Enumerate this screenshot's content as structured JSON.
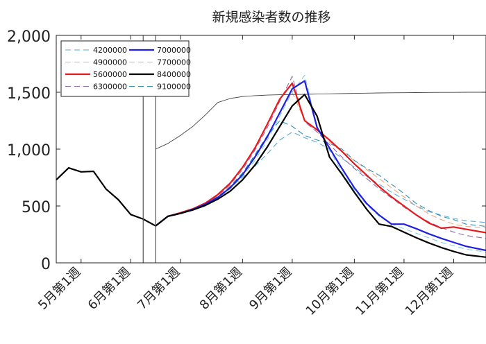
{
  "chart_data": {
    "type": "line",
    "title": "新規感染者数の推移",
    "xlabel": "",
    "ylabel": "",
    "ylim": [
      0,
      2000
    ],
    "yticks": [
      0,
      500,
      1000,
      1500,
      2000
    ],
    "ytick_labels": [
      "0",
      "500",
      "1,000",
      "1,500",
      "2,000"
    ],
    "xlim": [
      0,
      34.6
    ],
    "xticks": [
      2,
      6,
      10,
      15,
      19,
      24,
      28,
      32
    ],
    "xtick_labels": [
      "5月第1週",
      "6月第1週",
      "7月第1週",
      "8月第1週",
      "9月第1週",
      "10月第1週",
      "11月第1週",
      "12月第1週"
    ],
    "vlines": [
      7,
      8
    ],
    "grid": false,
    "legend_position": "top-left",
    "series": [
      {
        "name": "observed",
        "legend": false,
        "color": "#000000",
        "width": 2.2,
        "dash": "",
        "x": [
          0,
          1,
          2,
          3,
          4,
          5,
          6,
          7,
          8
        ],
        "values": [
          730,
          835,
          800,
          805,
          650,
          555,
          425,
          385,
          325
        ]
      },
      {
        "name": "",
        "legend": false,
        "color": "#444444",
        "width": 0.9,
        "dash": "",
        "x": [
          8,
          9,
          10,
          11,
          12,
          13,
          14,
          15,
          16,
          17,
          18,
          19,
          20,
          21,
          22,
          23,
          24,
          25,
          26,
          27,
          28,
          29,
          30,
          31,
          32,
          33,
          34.6
        ],
        "values": [
          1000,
          1050,
          1120,
          1200,
          1300,
          1410,
          1445,
          1462,
          1470,
          1475,
          1478,
          1480,
          1482,
          1484,
          1486,
          1488,
          1490,
          1492,
          1494,
          1495,
          1496,
          1497,
          1498,
          1499,
          1499,
          1500,
          1500
        ]
      },
      {
        "name": "4200000",
        "legend": true,
        "color": "#5aaad3",
        "width": 1.1,
        "dash": "8,5",
        "x": [
          8,
          9,
          10,
          11,
          12,
          13,
          14,
          15,
          16,
          17,
          18,
          19,
          20,
          21,
          22,
          23,
          24,
          25,
          26,
          27,
          28,
          29,
          30,
          31,
          32,
          33,
          34.6
        ],
        "values": [
          325,
          410,
          435,
          470,
          520,
          580,
          660,
          750,
          850,
          960,
          1080,
          1150,
          1100,
          1060,
          1000,
          920,
          840,
          760,
          690,
          620,
          560,
          500,
          450,
          420,
          390,
          370,
          355
        ]
      },
      {
        "name": "4900000",
        "legend": true,
        "color": "#f2a57e",
        "width": 1.1,
        "dash": "8,5",
        "x": [
          8,
          9,
          10,
          11,
          12,
          13,
          14,
          15,
          16,
          17,
          18,
          19,
          20,
          21,
          22,
          23,
          24,
          25,
          26,
          27,
          28,
          29,
          30,
          31,
          32,
          33,
          34.6
        ],
        "values": [
          325,
          410,
          440,
          475,
          525,
          590,
          680,
          790,
          930,
          1100,
          1320,
          1500,
          1250,
          1150,
          1060,
          980,
          900,
          820,
          740,
          660,
          580,
          500,
          430,
          380,
          340,
          320,
          310
        ]
      },
      {
        "name": "5600000",
        "legend": true,
        "color": "#e8191c",
        "width": 2.2,
        "dash": "",
        "x": [
          8,
          9,
          10,
          11,
          12,
          13,
          14,
          15,
          16,
          17,
          18,
          19,
          20,
          21,
          22,
          23,
          24,
          25,
          26,
          27,
          28,
          29,
          30,
          31,
          32,
          33,
          34.6
        ],
        "values": [
          325,
          410,
          440,
          475,
          525,
          600,
          700,
          840,
          1010,
          1220,
          1440,
          1580,
          1250,
          1170,
          1080,
          980,
          870,
          770,
          670,
          580,
          500,
          420,
          350,
          305,
          315,
          295,
          265
        ]
      },
      {
        "name": "6300000",
        "legend": true,
        "color": "#8e6ba8",
        "width": 1.1,
        "dash": "8,5",
        "x": [
          8,
          9,
          10,
          11,
          12,
          13,
          14,
          15,
          16,
          17,
          18,
          19,
          20,
          21,
          22,
          23,
          24,
          25,
          26,
          27,
          28,
          29,
          30,
          31,
          32,
          33,
          34.6
        ],
        "values": [
          325,
          410,
          440,
          475,
          520,
          590,
          690,
          820,
          990,
          1190,
          1420,
          1640,
          1240,
          1150,
          1040,
          930,
          830,
          740,
          650,
          570,
          490,
          420,
          360,
          310,
          270,
          240,
          215
        ]
      },
      {
        "name": "7000000",
        "legend": true,
        "color": "#1f1fe0",
        "width": 2.2,
        "dash": "",
        "x": [
          8,
          9,
          10,
          11,
          12,
          13,
          14,
          15,
          16,
          17,
          18,
          19,
          20,
          21,
          22,
          23,
          24,
          25,
          26,
          27,
          28,
          29,
          30,
          31,
          32,
          33,
          34.6
        ],
        "values": [
          325,
          410,
          435,
          470,
          515,
          575,
          660,
          775,
          930,
          1110,
          1320,
          1530,
          1600,
          1190,
          1010,
          830,
          660,
          520,
          420,
          340,
          340,
          300,
          255,
          215,
          180,
          145,
          110
        ]
      },
      {
        "name": "7700000",
        "legend": true,
        "color": "#7ed0ea",
        "width": 1.1,
        "dash": "8,5",
        "x": [
          8,
          9,
          10,
          11,
          12,
          13,
          14,
          15,
          16,
          17,
          18,
          19,
          20,
          21,
          22,
          23,
          24,
          25,
          26,
          27,
          28,
          29,
          30,
          31,
          32,
          33,
          34.6
        ],
        "values": [
          325,
          410,
          435,
          465,
          510,
          570,
          650,
          760,
          900,
          1080,
          1290,
          1500,
          1650,
          1200,
          990,
          800,
          640,
          510,
          410,
          340,
          300,
          260,
          220,
          180,
          150,
          120,
          95
        ]
      },
      {
        "name": "8400000",
        "legend": true,
        "color": "#000000",
        "width": 2.2,
        "dash": "",
        "x": [
          8,
          9,
          10,
          11,
          12,
          13,
          14,
          15,
          16,
          17,
          18,
          19,
          20,
          21,
          22,
          23,
          24,
          25,
          26,
          27,
          28,
          29,
          30,
          31,
          32,
          33,
          34.6
        ],
        "values": [
          325,
          410,
          435,
          465,
          505,
          560,
          630,
          730,
          860,
          1020,
          1200,
          1380,
          1480,
          1290,
          930,
          780,
          620,
          470,
          340,
          320,
          270,
          220,
          175,
          135,
          100,
          70,
          50
        ]
      },
      {
        "name": "9100000",
        "legend": true,
        "color": "#2f8fb0",
        "width": 1.1,
        "dash": "8,5",
        "x": [
          8,
          9,
          10,
          11,
          12,
          13,
          14,
          15,
          16,
          17,
          18,
          19,
          20,
          21,
          22,
          23,
          24,
          25,
          26,
          27,
          28,
          29,
          30,
          31,
          32,
          33,
          34.6
        ],
        "values": [
          325,
          410,
          435,
          470,
          515,
          580,
          670,
          790,
          950,
          1120,
          1250,
          1200,
          1120,
          1080,
          1050,
          1000,
          900,
          830,
          770,
          690,
          610,
          520,
          460,
          410,
          380,
          340,
          320
        ]
      }
    ]
  }
}
